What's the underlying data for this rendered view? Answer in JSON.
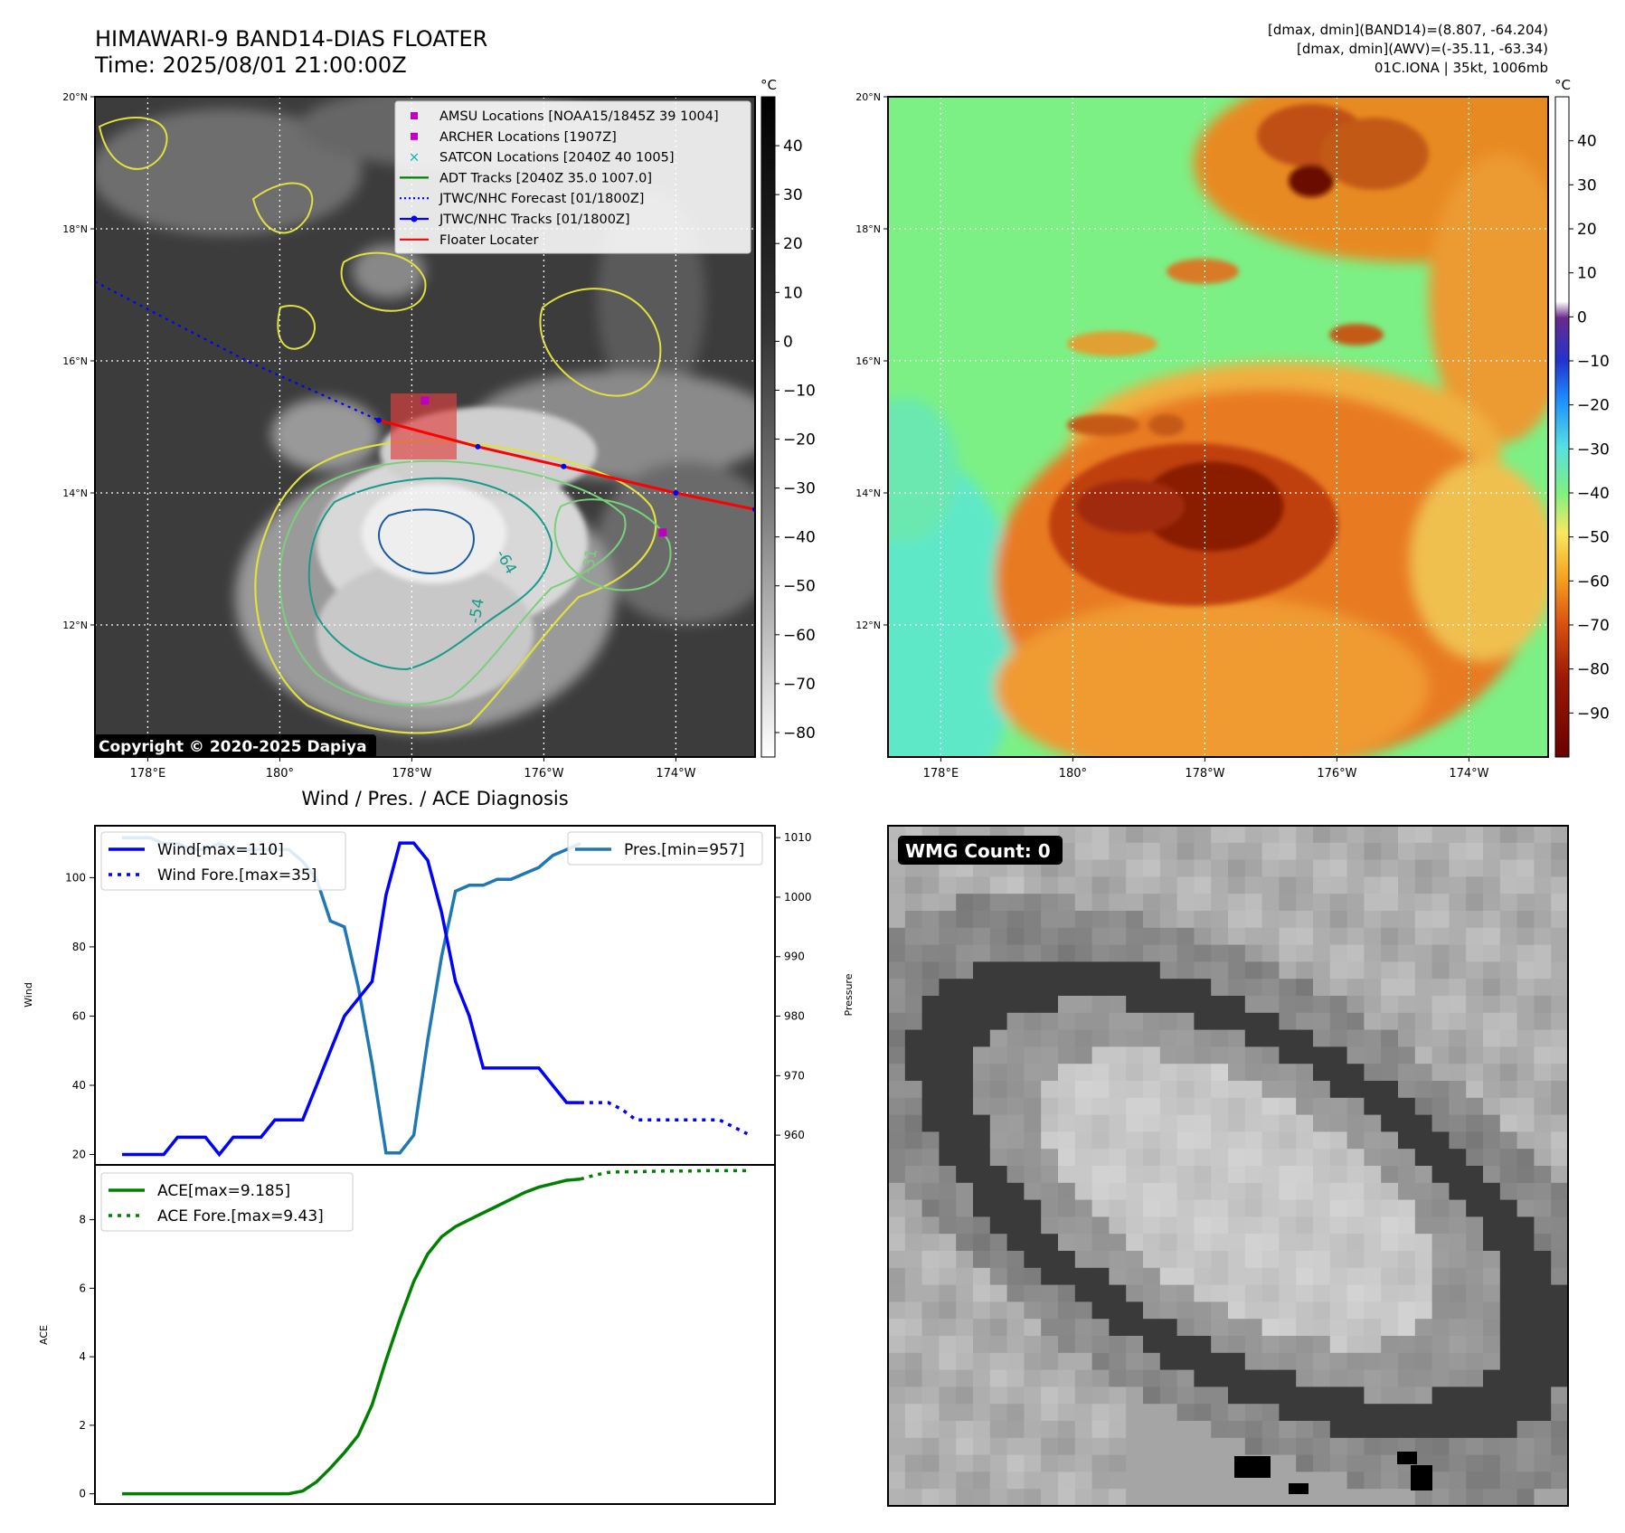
{
  "header": {
    "title_line1": "HIMAWARI-9 BAND14-DIAS FLOATER",
    "title_line2": "Time: 2025/08/01 21:00:00Z",
    "info_line1": "[dmax, dmin](BAND14)=(8.807, -64.204)",
    "info_line2": "[dmax, dmin](AWV)=(-35.11, -63.34)",
    "info_line3": "01C.IONA | 35kt, 1006mb"
  },
  "map_axes": {
    "lat_labels": [
      "20°N",
      "18°N",
      "16°N",
      "14°N",
      "12°N"
    ],
    "lat_values": [
      20,
      18,
      16,
      14,
      12
    ],
    "lon_labels": [
      "178°E",
      "180°",
      "178°W",
      "176°W",
      "174°W"
    ],
    "lon_values": [
      178,
      180,
      182,
      184,
      186
    ],
    "lat_range": [
      10,
      20
    ],
    "lon_range": [
      177.2,
      187.2
    ]
  },
  "ir_panel": {
    "legend": [
      {
        "label": "AMSU Locations [NOAA15/1845Z 39 1004]",
        "marker": "square",
        "color": "#c000c0"
      },
      {
        "label": "ARCHER Locations [1907Z]",
        "marker": "square",
        "color": "#c000c0"
      },
      {
        "label": "SATCON Locations [2040Z 40 1005]",
        "marker": "x",
        "color": "#00b5b5"
      },
      {
        "label": "ADT Tracks [2040Z 35.0 1007.0]",
        "marker": "line",
        "color": "#008000"
      },
      {
        "label": "JTWC/NHC Forecast [01/1800Z]",
        "marker": "dotted",
        "color": "#0000ff"
      },
      {
        "label": "JTWC/NHC Tracks [01/1800Z]",
        "marker": "dotline",
        "color": "#0000ff"
      },
      {
        "label": "Floater Locater",
        "marker": "line",
        "color": "#ff0000"
      }
    ],
    "colorbar_unit": "°C",
    "colorbar_ticks": [
      "40",
      "30",
      "20",
      "10",
      "0",
      "−10",
      "−20",
      "−30",
      "−40",
      "−50",
      "−60",
      "−70",
      "−80"
    ],
    "colorbar_values": [
      40,
      30,
      20,
      10,
      0,
      -10,
      -20,
      -30,
      -40,
      -50,
      -60,
      -70,
      -80
    ],
    "colorbar_range": [
      -85,
      50
    ],
    "contour_labels": [
      "-64",
      "-54",
      "-31"
    ],
    "copyright": "Copyright © 2020-2025 Dapiya",
    "forecast_track": [
      [
        177.2,
        17.2
      ],
      [
        179.5,
        16.0
      ],
      [
        181.5,
        15.1
      ]
    ],
    "best_track": [
      [
        181.5,
        15.1
      ],
      [
        183.0,
        14.7
      ],
      [
        184.3,
        14.4
      ],
      [
        186.0,
        14.0
      ],
      [
        187.2,
        13.75
      ]
    ],
    "amsu_points": [
      [
        182.2,
        15.4
      ],
      [
        185.8,
        13.4
      ]
    ]
  },
  "awv_panel": {
    "colorbar_unit": "°C",
    "colorbar_ticks": [
      "40",
      "30",
      "20",
      "10",
      "0",
      "−10",
      "−20",
      "−30",
      "−40",
      "−50",
      "−60",
      "−70",
      "−80",
      "−90"
    ],
    "colorbar_values": [
      40,
      30,
      20,
      10,
      0,
      -10,
      -20,
      -30,
      -40,
      -50,
      -60,
      -70,
      -80,
      -90
    ],
    "colorbar_range": [
      -100,
      50
    ]
  },
  "diagnosis_panel": {
    "title": "Wind / Pres. / ACE Diagnosis",
    "wind_ylabel": "Wind",
    "pressure_ylabel": "Pressure",
    "ace_ylabel": "ACE",
    "legend_wind": "Wind[max=110]",
    "legend_wind_fore": "Wind Fore.[max=35]",
    "legend_pres": "Pres.[min=957]",
    "legend_ace": "ACE[max=9.185]",
    "legend_ace_fore": "ACE Fore.[max=9.43]"
  },
  "wmg_panel": {
    "label": "WMG Count: 0"
  },
  "chart_data": [
    {
      "type": "line",
      "name": "wind",
      "ylabel": "Wind",
      "ylim": [
        17,
        115
      ],
      "yticks": [
        20,
        40,
        60,
        80,
        100
      ],
      "xlim": [
        0,
        47
      ],
      "series": [
        {
          "name": "Wind[max=110]",
          "x": [
            0,
            1,
            2,
            3,
            4,
            5,
            6,
            7,
            8,
            9,
            10,
            11,
            12,
            13,
            14,
            15,
            16,
            17,
            18,
            19,
            20,
            21,
            22,
            23,
            24,
            25,
            26,
            27,
            28,
            29,
            30,
            31,
            32,
            33
          ],
          "values": [
            20,
            20,
            20,
            20,
            25,
            25,
            25,
            20,
            25,
            25,
            25,
            30,
            30,
            30,
            40,
            50,
            60,
            65,
            70,
            95,
            110,
            110,
            105,
            90,
            70,
            60,
            45,
            45,
            45,
            45,
            45,
            40,
            35,
            35
          ]
        },
        {
          "name": "Wind Fore.[max=35]",
          "x": [
            33,
            34,
            35,
            36,
            37,
            38,
            39,
            40,
            41,
            42,
            43,
            44,
            45
          ],
          "values": [
            35,
            35,
            35,
            33,
            30,
            30,
            30,
            30,
            30,
            30,
            30,
            28,
            26
          ]
        }
      ]
    },
    {
      "type": "line",
      "name": "pressure",
      "ylabel": "Pressure",
      "ylim": [
        955,
        1012
      ],
      "yticks": [
        960,
        970,
        980,
        990,
        1000,
        1010
      ],
      "xlim": [
        0,
        47
      ],
      "series": [
        {
          "name": "Pres.[min=957]",
          "x": [
            0,
            1,
            2,
            3,
            4,
            5,
            6,
            7,
            8,
            9,
            10,
            11,
            12,
            13,
            14,
            15,
            16,
            17,
            18,
            19,
            20,
            21,
            22,
            23,
            24,
            25,
            26,
            27,
            28,
            29,
            30,
            31,
            32,
            33
          ],
          "values": [
            1010,
            1010,
            1010,
            1009,
            1009,
            1008,
            1008,
            1009,
            1008,
            1008,
            1008,
            1008,
            1008,
            1006,
            1003,
            996,
            995,
            985,
            972,
            957,
            957,
            960,
            976,
            990,
            1001,
            1002,
            1002,
            1003,
            1003,
            1004,
            1005,
            1007,
            1008,
            1009
          ]
        }
      ]
    },
    {
      "type": "line",
      "name": "ace",
      "ylabel": "ACE",
      "ylim": [
        -0.3,
        9.6
      ],
      "yticks": [
        0,
        2,
        4,
        6,
        8
      ],
      "xlim": [
        0,
        47
      ],
      "series": [
        {
          "name": "ACE[max=9.185]",
          "x": [
            0,
            1,
            2,
            3,
            4,
            5,
            6,
            7,
            8,
            9,
            10,
            11,
            12,
            13,
            14,
            15,
            16,
            17,
            18,
            19,
            20,
            21,
            22,
            23,
            24,
            25,
            26,
            27,
            28,
            29,
            30,
            31,
            32,
            33
          ],
          "values": [
            0,
            0,
            0,
            0,
            0,
            0,
            0,
            0,
            0,
            0,
            0,
            0,
            0,
            0.08,
            0.35,
            0.75,
            1.2,
            1.7,
            2.6,
            3.9,
            5.1,
            6.2,
            7.0,
            7.5,
            7.8,
            8.0,
            8.2,
            8.4,
            8.6,
            8.8,
            8.95,
            9.05,
            9.15,
            9.185
          ]
        },
        {
          "name": "ACE Fore.[max=9.43]",
          "x": [
            33,
            34,
            35,
            36,
            37,
            38,
            39,
            40,
            41,
            42,
            43,
            44,
            45
          ],
          "values": [
            9.185,
            9.3,
            9.38,
            9.4,
            9.4,
            9.41,
            9.42,
            9.42,
            9.42,
            9.43,
            9.43,
            9.43,
            9.43
          ]
        }
      ]
    }
  ]
}
